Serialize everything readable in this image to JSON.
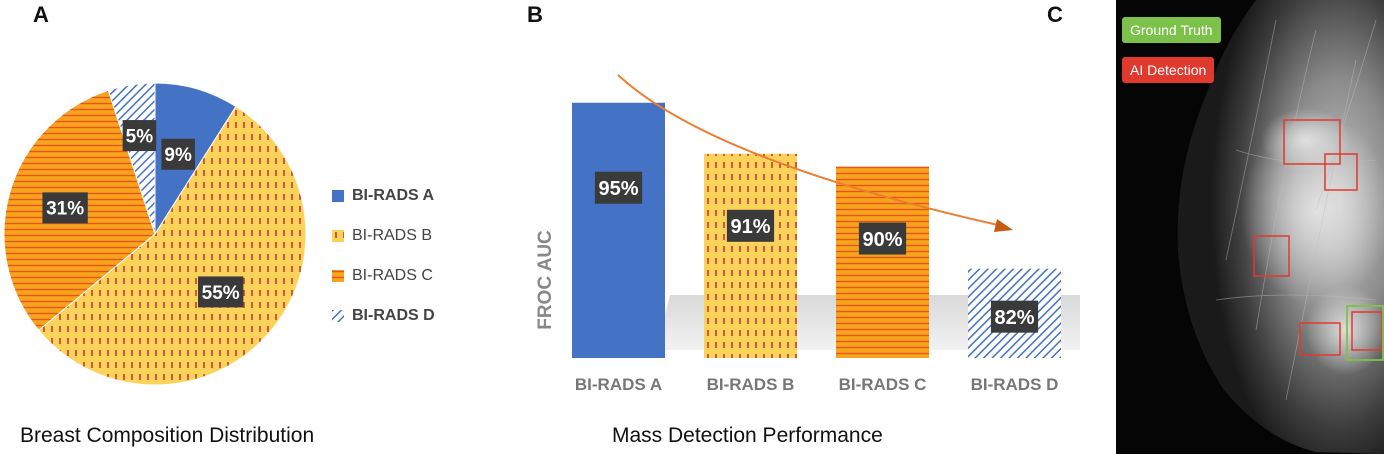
{
  "panels": {
    "a": "A",
    "b": "B",
    "c": "C"
  },
  "chart_data": [
    {
      "type": "pie",
      "title": "Breast Composition Distribution",
      "categories": [
        "BI-RADS A",
        "BI-RADS B",
        "BI-RADS C",
        "BI-RADS D"
      ],
      "values": [
        9,
        55,
        31,
        5
      ],
      "value_labels": [
        "9%",
        "55%",
        "31%",
        "5%"
      ],
      "colors": [
        "#4472c4",
        "#fbd35a",
        "#f5a623",
        "#4472c4"
      ],
      "legend_position": "right"
    },
    {
      "type": "bar",
      "title": "Mass Detection Performance",
      "categories": [
        "BI-RADS A",
        "BI-RADS B",
        "BI-RADS C",
        "BI-RADS D"
      ],
      "values": [
        95,
        91,
        90,
        82
      ],
      "value_labels": [
        "95%",
        "91%",
        "90%",
        "82%"
      ],
      "xlabel": "",
      "ylabel": "FROC AUC",
      "ylim": [
        75,
        96
      ],
      "trend_arrow": "decreasing"
    }
  ],
  "image_panel": {
    "legend": {
      "ground_truth": "Ground Truth",
      "ai_detection": "AI Detection"
    },
    "colors": {
      "ground_truth": "#7cc24a",
      "ai_detection": "#e03a2f"
    }
  }
}
